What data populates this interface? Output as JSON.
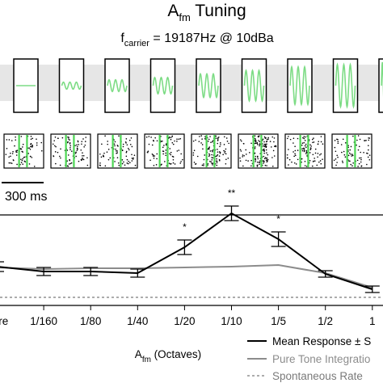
{
  "figure": {
    "title_main": "A",
    "title_sub": "fm",
    "title_rest": " Tuning",
    "carrier_prefix": "f",
    "carrier_sub": "carrier",
    "carrier_rest": " = 19187Hz @ 10dBa",
    "scale_bar_label": "300 ms"
  },
  "stimulus_panels": {
    "count": 9,
    "modulation_levels": [
      0,
      0.15,
      0.25,
      0.35,
      0.5,
      0.65,
      0.8,
      0.9,
      1.0
    ],
    "cycles": [
      0,
      3,
      3,
      3,
      3,
      3,
      3,
      3,
      5
    ],
    "wave_color": "#7ddc85",
    "band_color": "#e6e6e6"
  },
  "raster_panels": {
    "count": 8,
    "line_color": "#4cd653",
    "dot_color": "#000000",
    "dot_density": [
      0.4,
      0.45,
      0.45,
      0.5,
      0.75,
      1.0,
      0.6,
      0.45
    ]
  },
  "chart_data": {
    "type": "line",
    "xlabel_main": "A",
    "xlabel_sub": "fm",
    "xlabel_rest": " (Octaves)",
    "categories": [
      "Pure",
      "1/160",
      "1/80",
      "1/40",
      "1/20",
      "1/10",
      "1/5",
      "1/2",
      "1"
    ],
    "series": [
      {
        "name": "Mean Response ± S",
        "color": "#000000",
        "values": [
          0.26,
          0.2,
          0.2,
          0.18,
          0.5,
          0.92,
          0.6,
          0.17,
          -0.02
        ],
        "errors": [
          0.06,
          0.05,
          0.05,
          0.05,
          0.09,
          0.09,
          0.09,
          0.04,
          0.04
        ]
      },
      {
        "name": "Pure Tone Integratio",
        "color": "#8c8c8c",
        "values": [
          0.25,
          0.23,
          0.24,
          0.24,
          0.25,
          0.26,
          0.28,
          0.18,
          0.0
        ]
      },
      {
        "name": "Spontaneous Rate",
        "color": "#7a7a7a",
        "values": [
          -0.12,
          -0.12,
          -0.12,
          -0.12,
          -0.12,
          -0.12,
          -0.12,
          -0.12,
          -0.12
        ]
      }
    ],
    "significance": [
      {
        "category": "1/20",
        "label": "*"
      },
      {
        "category": "1/10",
        "label": "**"
      },
      {
        "category": "1/5",
        "label": "*"
      }
    ],
    "ylim": [
      -0.2,
      1.2
    ]
  }
}
